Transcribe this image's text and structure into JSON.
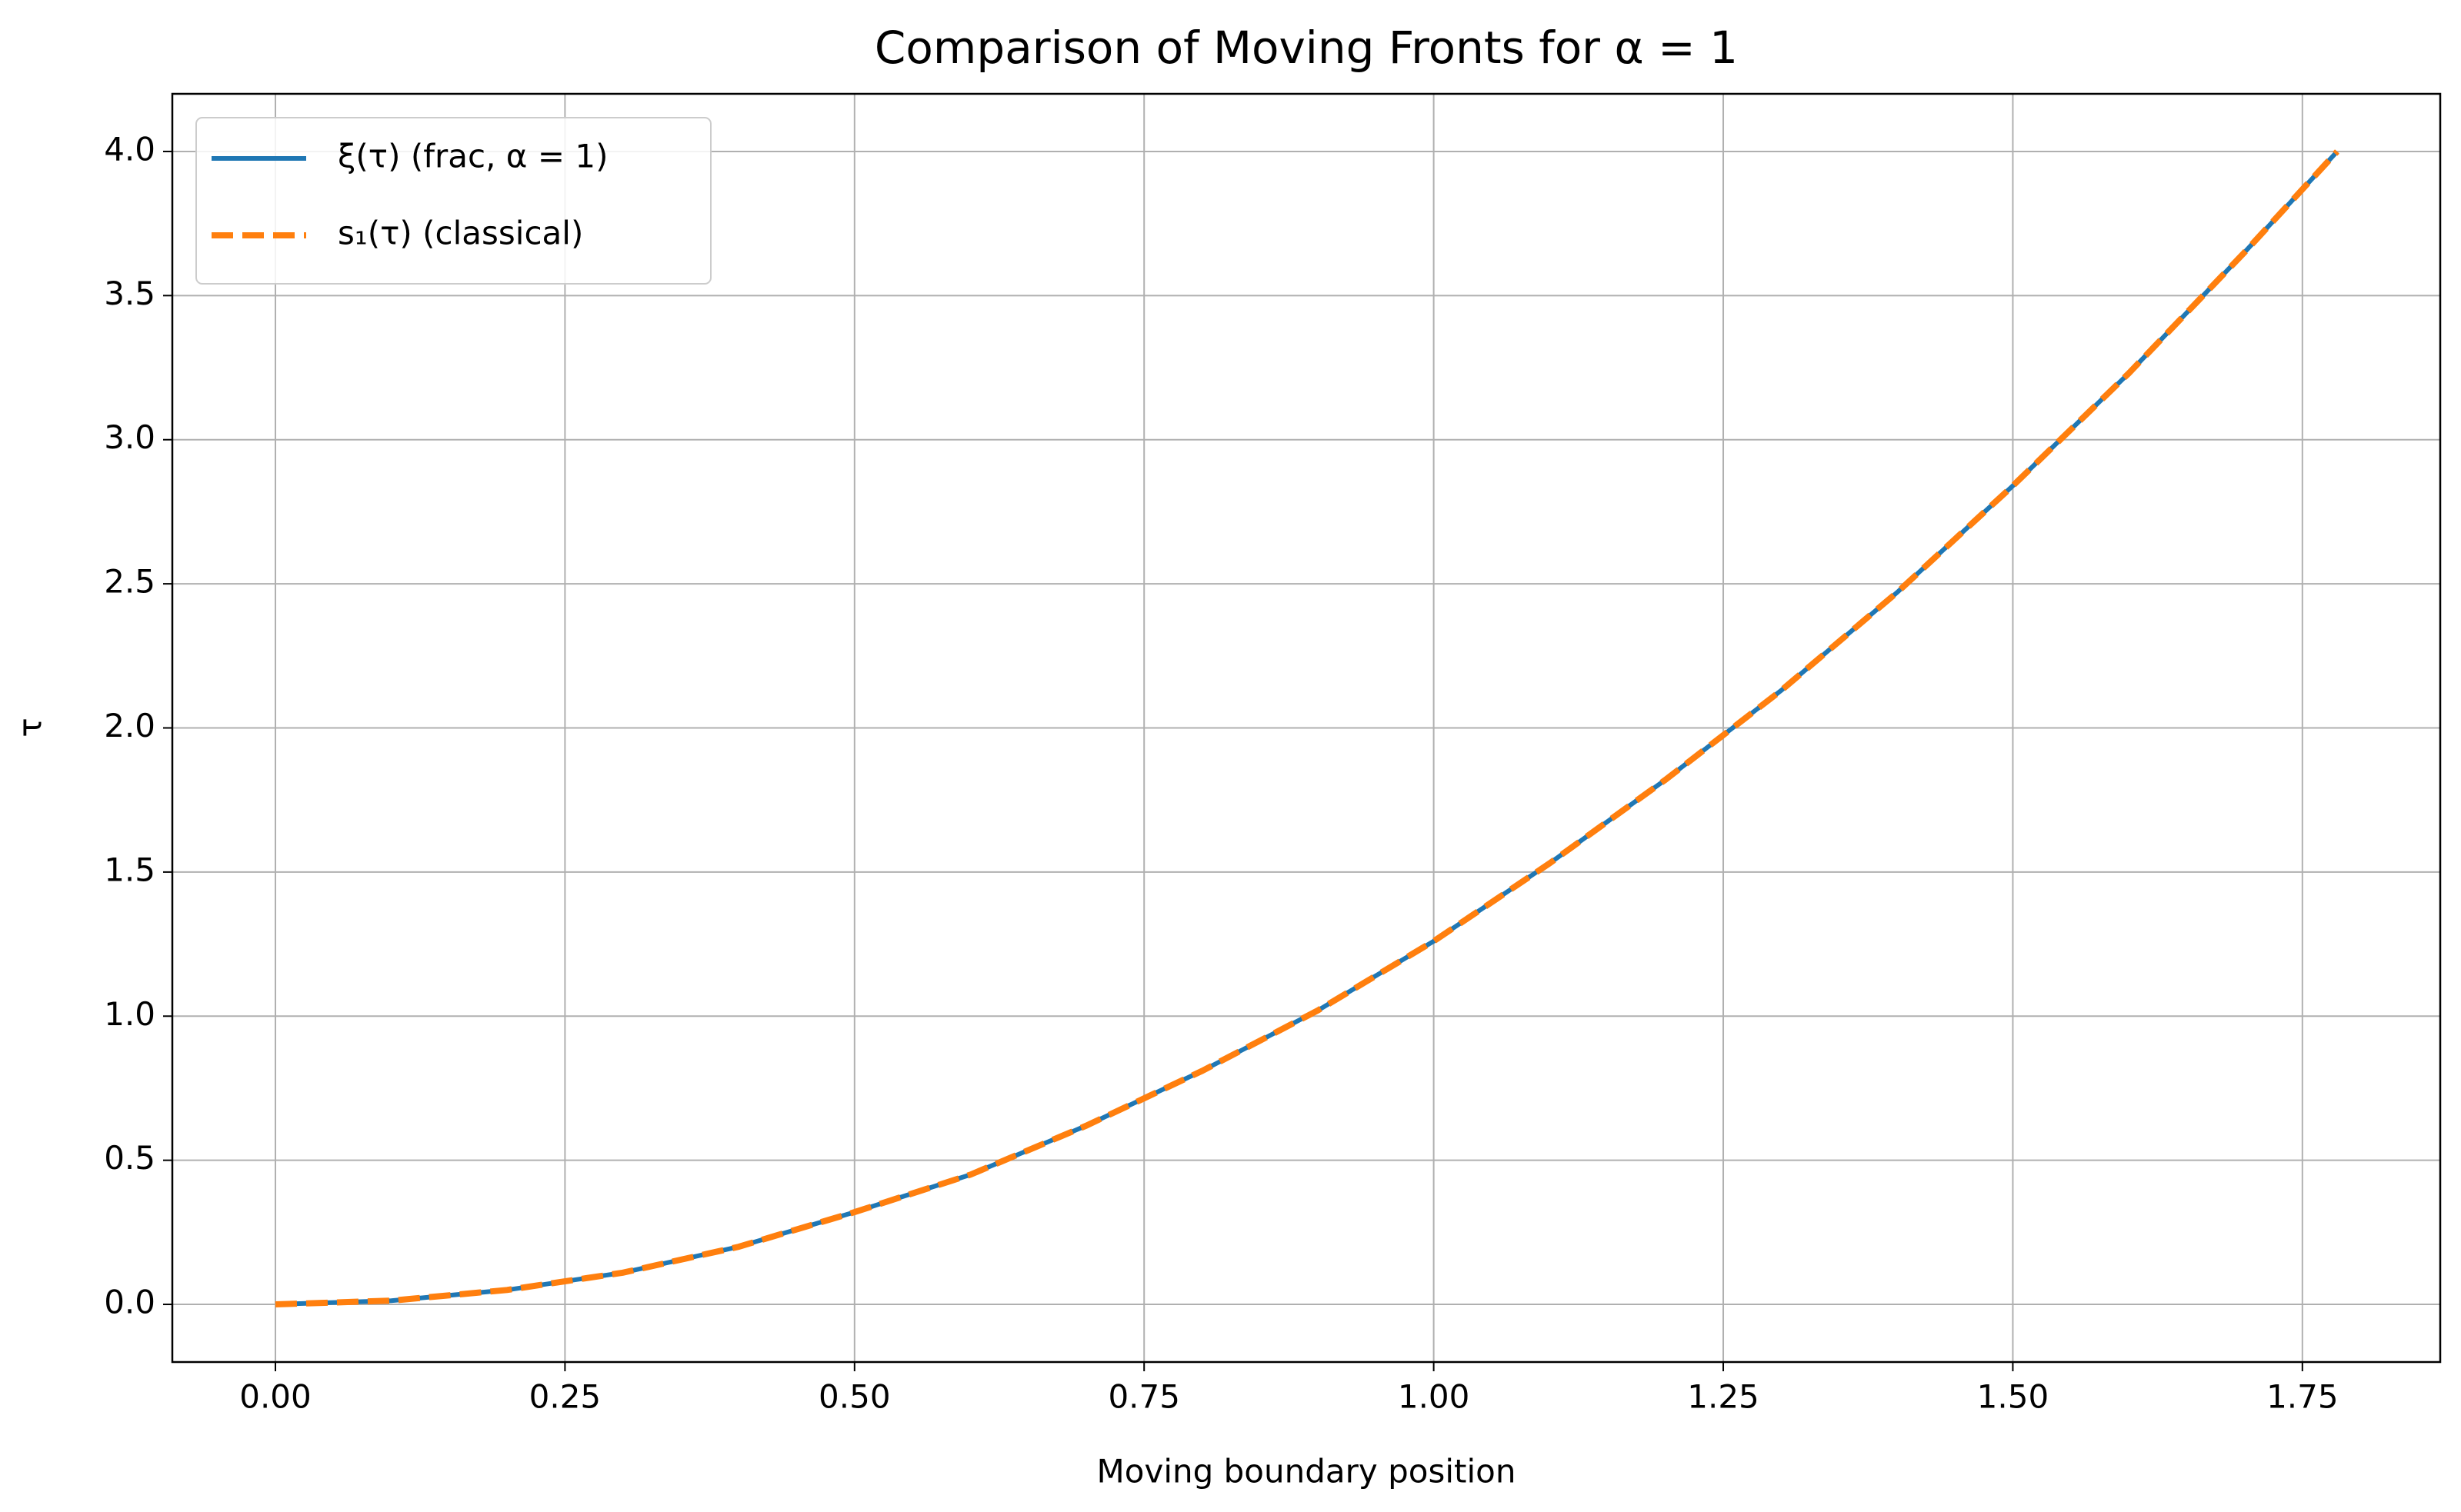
{
  "chart_data": {
    "type": "line",
    "title": "Comparison of Moving Fronts for α = 1",
    "x_label": "Moving boundary position",
    "y_label": "τ",
    "x": [
      0,
      0.1,
      0.2,
      0.3,
      0.4,
      0.5,
      0.6,
      0.7,
      0.8,
      0.9,
      1.0,
      1.1,
      1.2,
      1.3,
      1.4,
      1.5,
      1.6,
      1.7,
      1.78
    ],
    "series": [
      {
        "name": "ξ(τ) (frac, α = 1)",
        "color": "#1f77b4",
        "dash": false,
        "values": [
          0,
          0.013,
          0.05,
          0.11,
          0.2,
          0.32,
          0.45,
          0.62,
          0.81,
          1.02,
          1.26,
          1.53,
          1.82,
          2.13,
          2.47,
          2.84,
          3.23,
          3.65,
          4.0
        ]
      },
      {
        "name": "s₁(τ) (classical)",
        "color": "#ff7f0e",
        "dash": true,
        "values": [
          0,
          0.013,
          0.05,
          0.11,
          0.2,
          0.32,
          0.45,
          0.62,
          0.81,
          1.02,
          1.26,
          1.53,
          1.82,
          2.13,
          2.47,
          2.84,
          3.23,
          3.65,
          4.0
        ]
      }
    ],
    "xlim": [
      -0.089,
      1.869
    ],
    "ylim": [
      -0.2,
      4.2
    ],
    "xticks": [
      {
        "value": 0,
        "label": "0.00"
      },
      0.25,
      {
        "value": 0.5,
        "label": "0.50"
      },
      0.75,
      {
        "value": 1,
        "label": "1.00"
      },
      1.25,
      {
        "value": 1.5,
        "label": "1.50"
      },
      1.75
    ],
    "yticks": [
      {
        "value": 0,
        "label": "0.0"
      },
      0.5,
      {
        "value": 1,
        "label": "1.0"
      },
      1.5,
      {
        "value": 2,
        "label": "2.0"
      },
      2.5,
      {
        "value": 3,
        "label": "3.0"
      },
      3.5,
      {
        "value": 4,
        "label": "4.0"
      }
    ],
    "grid": true,
    "legend": "upper-left"
  }
}
